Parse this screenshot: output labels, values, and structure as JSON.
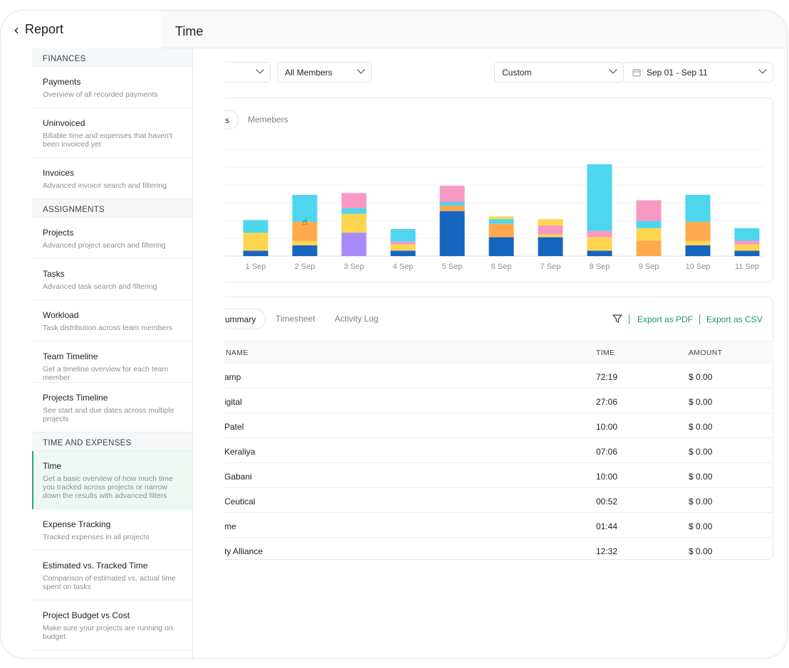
{
  "header": {
    "back_label": "Report",
    "title": "Time"
  },
  "sidebar": {
    "sections": [
      {
        "heading": "FINANCES",
        "items": [
          {
            "title": "Payments",
            "desc": "Overview of all recorded payments"
          },
          {
            "title": "Uninvoiced",
            "desc": "Billable time and expenses that haven't been invoiced yet"
          },
          {
            "title": "Invoices",
            "desc": "Advanced invoice search and filtering"
          }
        ]
      },
      {
        "heading": "ASSIGNMENTS",
        "items": [
          {
            "title": "Projects",
            "desc": "Advanced project search and filtering"
          },
          {
            "title": "Tasks",
            "desc": "Advanced task search and filtering"
          },
          {
            "title": "Workload",
            "desc": "Task distribution across team members"
          },
          {
            "title": "Team Timeline",
            "desc": "Get a timeline overview for each team member"
          },
          {
            "title": "Projects Timeline",
            "desc": "See start and due dates across multiple projects"
          }
        ]
      },
      {
        "heading": "TIME AND EXPENSES",
        "items": [
          {
            "title": "Time",
            "desc": "Get a basic overview of how much time you tracked across projects or narrow down the results with advanced filters",
            "active": true
          },
          {
            "title": "Expense Tracking",
            "desc": "Tracked expenses in all projects"
          },
          {
            "title": "Estimated vs. Tracked Time",
            "desc": "Comparison of estimated vs. actual time spent on tasks"
          },
          {
            "title": "Project Budget vs Cost",
            "desc": "Make sure your projects are running on budget"
          }
        ]
      }
    ]
  },
  "filters": {
    "members": "All Members",
    "range_type": "Custom",
    "date_range": "Sep 01 - Sep 11"
  },
  "chart_tabs": {
    "active_partial": "s",
    "members": "Memebers"
  },
  "chart_data": {
    "type": "bar",
    "stacked": true,
    "categories": [
      "1 Sep",
      "2 Sep",
      "3 Sep",
      "4 Sep",
      "5 Sep",
      "6 Sep",
      "7 Sep",
      "8 Sep",
      "9 Sep",
      "10 Sep",
      "11 Sep"
    ],
    "colors": [
      "#1565c0",
      "#a78bfa",
      "#ffd54f",
      "#ffa94d",
      "#f799c3",
      "#4dd6ee"
    ],
    "stacks": [
      [
        [
          "#1565c0",
          6
        ],
        [
          "#ffd54f",
          20
        ],
        [
          "#4dd6ee",
          14
        ]
      ],
      [
        [
          "#1565c0",
          12
        ],
        [
          "#ffd54f",
          5
        ],
        [
          "#ffa94d",
          21
        ],
        [
          "#4dd6ee",
          30
        ]
      ],
      [
        [
          "#a78bfa",
          26
        ],
        [
          "#ffd54f",
          21
        ],
        [
          "#4dd6ee",
          6
        ],
        [
          "#f799c3",
          17
        ]
      ],
      [
        [
          "#1565c0",
          6
        ],
        [
          "#ffd54f",
          7
        ],
        [
          "#f799c3",
          3
        ],
        [
          "#4dd6ee",
          14
        ]
      ],
      [
        [
          "#1565c0",
          50
        ],
        [
          "#ffa94d",
          6
        ],
        [
          "#4dd6ee",
          4
        ],
        [
          "#f799c3",
          18
        ]
      ],
      [
        [
          "#1565c0",
          21
        ],
        [
          "#ffa94d",
          15
        ],
        [
          "#4dd6ee",
          5
        ],
        [
          "#ffd54f",
          3
        ]
      ],
      [
        [
          "#1565c0",
          21
        ],
        [
          "#ffd54f",
          3
        ],
        [
          "#f799c3",
          10
        ],
        [
          "#ffd54f",
          7
        ]
      ],
      [
        [
          "#1565c0",
          6
        ],
        [
          "#ffd54f",
          15
        ],
        [
          "#f799c3",
          7
        ],
        [
          "#4dd6ee",
          74
        ]
      ],
      [
        [
          "#ffa94d",
          17
        ],
        [
          "#ffd54f",
          14
        ],
        [
          "#4dd6ee",
          8
        ],
        [
          "#f799c3",
          23
        ]
      ],
      [
        [
          "#1565c0",
          12
        ],
        [
          "#ffd54f",
          5
        ],
        [
          "#ffa94d",
          21
        ],
        [
          "#4dd6ee",
          30
        ]
      ],
      [
        [
          "#1565c0",
          6
        ],
        [
          "#ffd54f",
          7
        ],
        [
          "#f799c3",
          4
        ],
        [
          "#4dd6ee",
          14
        ]
      ]
    ],
    "ylim": [
      0,
      120
    ],
    "grid": true,
    "xlabel": "",
    "ylabel": ""
  },
  "table_tabs": {
    "summary": "ummary",
    "timesheet": "Timesheet",
    "activity": "Activity Log"
  },
  "exports": {
    "pdf": "Export as PDF",
    "csv": "Export as CSV"
  },
  "table": {
    "headers": {
      "name": "NAME",
      "time": "TIME",
      "amount": "AMOUNT"
    },
    "rows": [
      {
        "name": "amp",
        "time": "72:19",
        "amount": "$ 0.00"
      },
      {
        "name": "igital",
        "time": "27:06",
        "amount": "$ 0.00"
      },
      {
        "name": "Patel",
        "time": "10:00",
        "amount": "$ 0.00"
      },
      {
        "name": "Keraliya",
        "time": "07:06",
        "amount": "$ 0.00"
      },
      {
        "name": "Gabani",
        "time": "10:00",
        "amount": "$ 0.00"
      },
      {
        "name": "Ceutical",
        "time": "00:52",
        "amount": "$ 0.00"
      },
      {
        "name": "me",
        "time": "01:44",
        "amount": "$ 0.00"
      },
      {
        "name": "ty Alliance",
        "time": "12:32",
        "amount": "$ 0.00"
      }
    ]
  }
}
